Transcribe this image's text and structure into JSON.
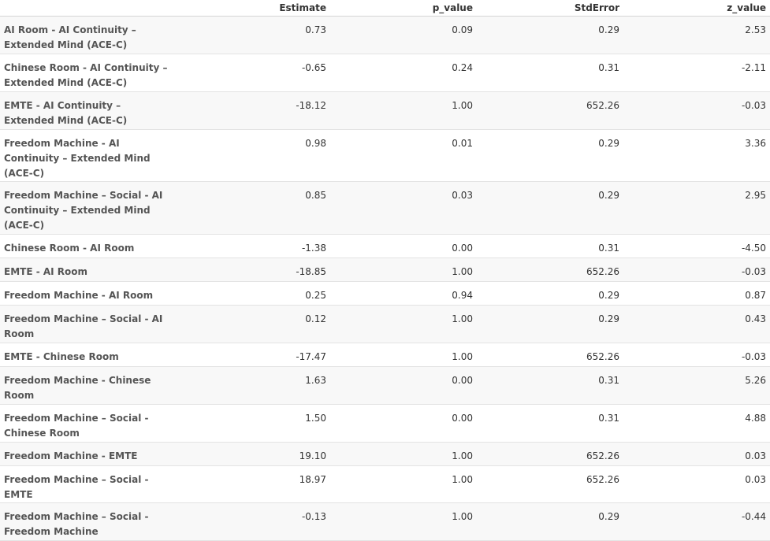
{
  "table": {
    "columns": [
      "",
      "Estimate",
      "p_value",
      "StdError",
      "z_value"
    ],
    "rows": [
      {
        "name": "AI Room - AI Continuity – Extended Mind (ACE-C)",
        "estimate": "0.73",
        "p_value": "0.09",
        "std_error": "0.29",
        "z_value": "2.53"
      },
      {
        "name": "Chinese Room - AI Continuity – Extended Mind (ACE-C)",
        "estimate": "-0.65",
        "p_value": "0.24",
        "std_error": "0.31",
        "z_value": "-2.11"
      },
      {
        "name": "EMTE - AI Continuity – Extended Mind (ACE-C)",
        "estimate": "-18.12",
        "p_value": "1.00",
        "std_error": "652.26",
        "z_value": "-0.03"
      },
      {
        "name": "Freedom Machine - AI Continuity – Extended Mind (ACE-C)",
        "estimate": "0.98",
        "p_value": "0.01",
        "std_error": "0.29",
        "z_value": "3.36"
      },
      {
        "name": "Freedom Machine – Social - AI Continuity – Extended Mind (ACE-C)",
        "estimate": "0.85",
        "p_value": "0.03",
        "std_error": "0.29",
        "z_value": "2.95"
      },
      {
        "name": "Chinese Room - AI Room",
        "estimate": "-1.38",
        "p_value": "0.00",
        "std_error": "0.31",
        "z_value": "-4.50"
      },
      {
        "name": "EMTE - AI Room",
        "estimate": "-18.85",
        "p_value": "1.00",
        "std_error": "652.26",
        "z_value": "-0.03"
      },
      {
        "name": "Freedom Machine - AI Room",
        "estimate": "0.25",
        "p_value": "0.94",
        "std_error": "0.29",
        "z_value": "0.87"
      },
      {
        "name": "Freedom Machine – Social - AI Room",
        "estimate": "0.12",
        "p_value": "1.00",
        "std_error": "0.29",
        "z_value": "0.43"
      },
      {
        "name": "EMTE - Chinese Room",
        "estimate": "-17.47",
        "p_value": "1.00",
        "std_error": "652.26",
        "z_value": "-0.03"
      },
      {
        "name": "Freedom Machine - Chinese Room",
        "estimate": "1.63",
        "p_value": "0.00",
        "std_error": "0.31",
        "z_value": "5.26"
      },
      {
        "name": "Freedom Machine – Social - Chinese Room",
        "estimate": "1.50",
        "p_value": "0.00",
        "std_error": "0.31",
        "z_value": "4.88"
      },
      {
        "name": "Freedom Machine - EMTE",
        "estimate": "19.10",
        "p_value": "1.00",
        "std_error": "652.26",
        "z_value": "0.03"
      },
      {
        "name": "Freedom Machine – Social - EMTE",
        "estimate": "18.97",
        "p_value": "1.00",
        "std_error": "652.26",
        "z_value": "0.03"
      },
      {
        "name": "Freedom Machine – Social - Freedom Machine",
        "estimate": "-0.13",
        "p_value": "1.00",
        "std_error": "0.29",
        "z_value": "-0.44"
      }
    ]
  }
}
